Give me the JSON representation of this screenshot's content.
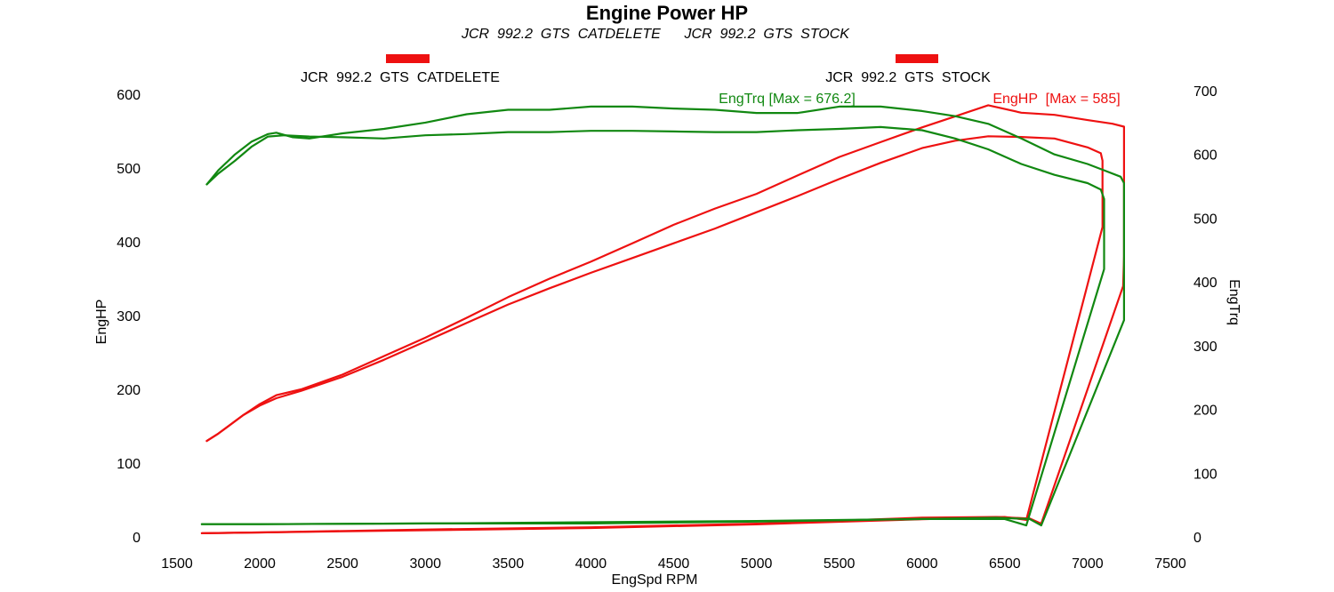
{
  "chart_data": {
    "type": "line",
    "title": "Engine Power HP",
    "subtitle": "JCR  992.2  GTS  CATDELETE      JCR  992.2  GTS  STOCK",
    "legend": [
      {
        "label": "JCR  992.2  GTS  CATDELETE",
        "color": "#ee1111"
      },
      {
        "label": "JCR  992.2  GTS  STOCK",
        "color": "#ee1111"
      }
    ],
    "xlabel": "EngSpd RPM",
    "ylabel_left": "EngHP",
    "ylabel_right": "EngTrq",
    "xlim": [
      1500,
      7500
    ],
    "ylim_left": [
      0,
      600
    ],
    "ylim_right": [
      0,
      700
    ],
    "x_ticks": [
      1500,
      2000,
      2500,
      3000,
      3500,
      4000,
      4500,
      5000,
      5500,
      6000,
      6500,
      7000,
      7500
    ],
    "y_left_ticks": [
      0,
      100,
      200,
      300,
      400,
      500,
      600
    ],
    "y_right_ticks": [
      0,
      100,
      200,
      300,
      400,
      500,
      600,
      700
    ],
    "annotations": [
      {
        "text": "EngTrq [Max = 676.2]",
        "color": "#118811"
      },
      {
        "text": "EngHP  [Max = 585]",
        "color": "#ee1111"
      }
    ],
    "colors": {
      "hp": "#ee1111",
      "torque": "#118811"
    },
    "series": [
      {
        "name": "EngHP CATDELETE",
        "axis": "left",
        "color": "#ee1111",
        "points": [
          [
            1680,
            130
          ],
          [
            1750,
            140
          ],
          [
            1900,
            165
          ],
          [
            2000,
            180
          ],
          [
            2100,
            192
          ],
          [
            2250,
            200
          ],
          [
            2500,
            220
          ],
          [
            2750,
            245
          ],
          [
            3000,
            270
          ],
          [
            3250,
            297
          ],
          [
            3500,
            325
          ],
          [
            3750,
            350
          ],
          [
            4000,
            373
          ],
          [
            4250,
            398
          ],
          [
            4500,
            423
          ],
          [
            4750,
            445
          ],
          [
            5000,
            465
          ],
          [
            5250,
            490
          ],
          [
            5500,
            515
          ],
          [
            5750,
            535
          ],
          [
            6000,
            555
          ],
          [
            6200,
            570
          ],
          [
            6400,
            585
          ],
          [
            6600,
            575
          ],
          [
            6800,
            572
          ],
          [
            7000,
            565
          ],
          [
            7150,
            560
          ],
          [
            7220,
            556
          ],
          [
            7220,
            380
          ],
          [
            7215,
            340
          ],
          [
            6720,
            18
          ],
          [
            6650,
            25
          ],
          [
            6450,
            27
          ],
          [
            6000,
            26
          ],
          [
            5000,
            18
          ],
          [
            4000,
            13
          ],
          [
            3000,
            10
          ],
          [
            2000,
            6
          ],
          [
            1650,
            5
          ]
        ]
      },
      {
        "name": "EngHP STOCK",
        "axis": "left",
        "color": "#ee1111",
        "points": [
          [
            1680,
            130
          ],
          [
            1750,
            140
          ],
          [
            1900,
            165
          ],
          [
            2000,
            178
          ],
          [
            2100,
            188
          ],
          [
            2250,
            198
          ],
          [
            2500,
            217
          ],
          [
            2750,
            240
          ],
          [
            3000,
            265
          ],
          [
            3250,
            290
          ],
          [
            3500,
            315
          ],
          [
            3750,
            337
          ],
          [
            4000,
            358
          ],
          [
            4250,
            378
          ],
          [
            4500,
            398
          ],
          [
            4750,
            418
          ],
          [
            5000,
            440
          ],
          [
            5250,
            462
          ],
          [
            5500,
            485
          ],
          [
            5750,
            507
          ],
          [
            6000,
            527
          ],
          [
            6200,
            537
          ],
          [
            6400,
            543
          ],
          [
            6600,
            542
          ],
          [
            6800,
            540
          ],
          [
            7000,
            528
          ],
          [
            7080,
            520
          ],
          [
            7090,
            510
          ],
          [
            7090,
            420
          ],
          [
            6630,
            23
          ],
          [
            6500,
            27
          ],
          [
            6000,
            24
          ],
          [
            5000,
            17
          ],
          [
            4000,
            12
          ],
          [
            3000,
            9
          ],
          [
            2000,
            6
          ],
          [
            1650,
            5
          ]
        ]
      },
      {
        "name": "EngTrq CATDELETE",
        "axis": "right",
        "color": "#118811",
        "points": [
          [
            1680,
            553
          ],
          [
            1750,
            575
          ],
          [
            1850,
            600
          ],
          [
            1950,
            620
          ],
          [
            2050,
            632
          ],
          [
            2100,
            634
          ],
          [
            2200,
            627
          ],
          [
            2300,
            625
          ],
          [
            2500,
            633
          ],
          [
            2750,
            640
          ],
          [
            3000,
            650
          ],
          [
            3250,
            663
          ],
          [
            3500,
            670
          ],
          [
            3750,
            670
          ],
          [
            4000,
            675
          ],
          [
            4250,
            675
          ],
          [
            4500,
            672
          ],
          [
            4750,
            670
          ],
          [
            5000,
            665
          ],
          [
            5250,
            665
          ],
          [
            5500,
            675
          ],
          [
            5750,
            675
          ],
          [
            6000,
            668
          ],
          [
            6200,
            660
          ],
          [
            6400,
            648
          ],
          [
            6600,
            625
          ],
          [
            6800,
            600
          ],
          [
            7000,
            585
          ],
          [
            7100,
            575
          ],
          [
            7200,
            565
          ],
          [
            7220,
            555
          ],
          [
            7220,
            340
          ],
          [
            6720,
            18
          ],
          [
            6650,
            28
          ],
          [
            6450,
            30
          ],
          [
            6000,
            28
          ],
          [
            5000,
            25
          ],
          [
            4000,
            23
          ],
          [
            3000,
            21
          ],
          [
            2000,
            20
          ],
          [
            1650,
            20
          ]
        ]
      },
      {
        "name": "EngTrq STOCK",
        "axis": "right",
        "color": "#118811",
        "points": [
          [
            1680,
            553
          ],
          [
            1750,
            570
          ],
          [
            1850,
            590
          ],
          [
            1950,
            612
          ],
          [
            2050,
            628
          ],
          [
            2150,
            630
          ],
          [
            2300,
            628
          ],
          [
            2500,
            627
          ],
          [
            2750,
            625
          ],
          [
            3000,
            630
          ],
          [
            3250,
            632
          ],
          [
            3500,
            635
          ],
          [
            3750,
            635
          ],
          [
            4000,
            637
          ],
          [
            4250,
            637
          ],
          [
            4500,
            636
          ],
          [
            4750,
            635
          ],
          [
            5000,
            635
          ],
          [
            5250,
            638
          ],
          [
            5500,
            640
          ],
          [
            5750,
            643
          ],
          [
            6000,
            638
          ],
          [
            6200,
            625
          ],
          [
            6400,
            608
          ],
          [
            6600,
            585
          ],
          [
            6800,
            568
          ],
          [
            7000,
            555
          ],
          [
            7080,
            545
          ],
          [
            7100,
            530
          ],
          [
            7100,
            420
          ],
          [
            6630,
            18
          ],
          [
            6500,
            28
          ],
          [
            6000,
            28
          ],
          [
            5000,
            24
          ],
          [
            4000,
            21
          ],
          [
            3000,
            21
          ],
          [
            2000,
            20
          ],
          [
            1650,
            20
          ]
        ]
      }
    ]
  }
}
